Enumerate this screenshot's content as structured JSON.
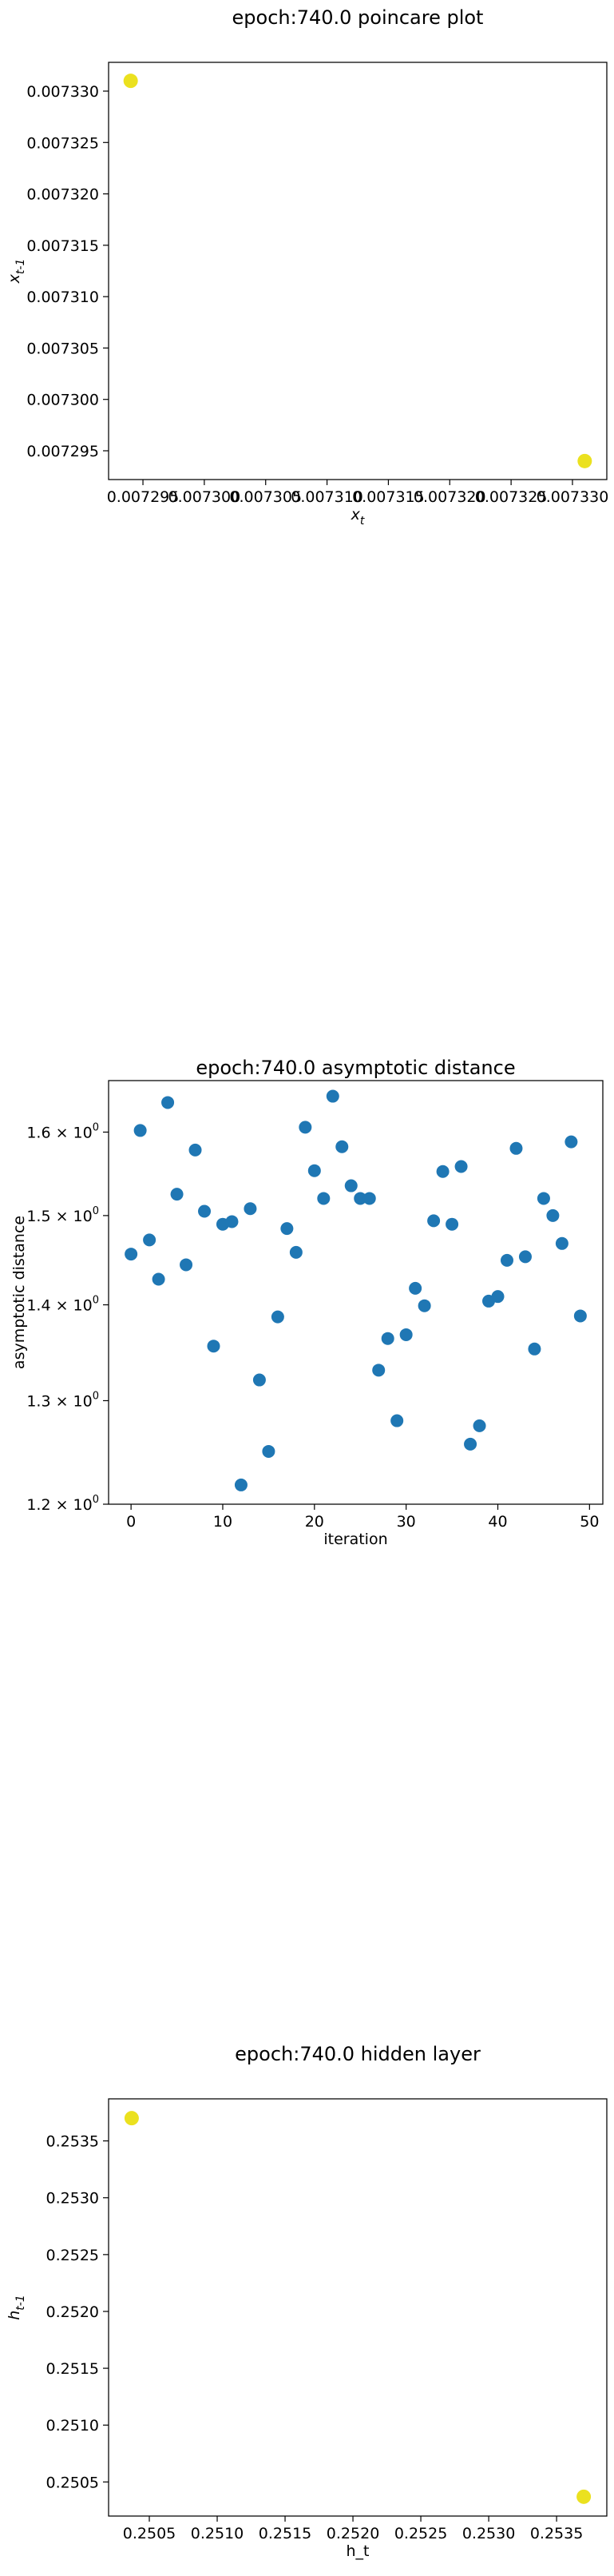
{
  "chart_data": [
    {
      "type": "scatter",
      "title": "epoch:740.0 poincare plot",
      "xlabel": "x_t",
      "ylabel": "x_{t-1}",
      "x": [
        0.007294,
        0.007331
      ],
      "y": [
        0.007331,
        0.007294
      ],
      "xlim": [
        0.0072922,
        0.0073328
      ],
      "ylim": [
        0.0072922,
        0.0073328
      ],
      "xticks": [
        "0.007295",
        "0.007300",
        "0.007305",
        "0.007310",
        "0.007315",
        "0.007320",
        "0.007325",
        "0.007330"
      ],
      "yticks": [
        "0.007295",
        "0.007300",
        "0.007305",
        "0.007310",
        "0.007315",
        "0.007320",
        "0.007325",
        "0.007330"
      ],
      "point_color": "#ebe11f",
      "grid": false
    },
    {
      "type": "scatter",
      "title": "epoch:740.0 asymptotic distance",
      "xlabel": "iteration",
      "ylabel": "asymptotic distance",
      "yscale": "log",
      "x": [
        0,
        1,
        2,
        3,
        4,
        5,
        6,
        7,
        8,
        9,
        10,
        11,
        12,
        13,
        14,
        15,
        16,
        17,
        18,
        19,
        20,
        21,
        22,
        23,
        24,
        25,
        26,
        27,
        28,
        29,
        30,
        31,
        32,
        33,
        34,
        35,
        36,
        37,
        38,
        39,
        40,
        41,
        42,
        43,
        44,
        45,
        46,
        47,
        48,
        49
      ],
      "y": [
        1.456,
        1.602,
        1.472,
        1.428,
        1.637,
        1.525,
        1.444,
        1.578,
        1.505,
        1.356,
        1.49,
        1.493,
        1.218,
        1.508,
        1.321,
        1.25,
        1.387,
        1.485,
        1.458,
        1.606,
        1.553,
        1.52,
        1.645,
        1.582,
        1.535,
        1.52,
        1.52,
        1.331,
        1.364,
        1.28,
        1.368,
        1.418,
        1.399,
        1.494,
        1.552,
        1.49,
        1.558,
        1.257,
        1.275,
        1.404,
        1.409,
        1.449,
        1.58,
        1.453,
        1.353,
        1.52,
        1.5,
        1.468,
        1.588,
        1.388
      ],
      "xlim": [
        -2.45,
        51.45
      ],
      "ylim": [
        1.2,
        1.665
      ],
      "xticks": [
        0,
        10,
        20,
        30,
        40,
        50
      ],
      "yticks": [
        1.2,
        1.3,
        1.4,
        1.5,
        1.6
      ],
      "yticklabels": [
        "1.2",
        "1.3",
        "1.4",
        "1.5",
        "1.6"
      ],
      "ytick_base": "× 10",
      "ytick_exp": "0",
      "point_color": "#1f77b4",
      "grid": false
    },
    {
      "type": "scatter",
      "title": "epoch:740.0 hidden layer",
      "xlabel": "h_t",
      "ylabel": "h_{t-1}",
      "x": [
        0.25037,
        0.2537
      ],
      "y": [
        0.2537,
        0.25037
      ],
      "xlim": [
        0.2502,
        0.25387
      ],
      "ylim": [
        0.2502,
        0.25387
      ],
      "xticks": [
        "0.2505",
        "0.2510",
        "0.2515",
        "0.2520",
        "0.2525",
        "0.2530",
        "0.2535"
      ],
      "yticks": [
        "0.2505",
        "0.2510",
        "0.2515",
        "0.2520",
        "0.2525",
        "0.2530",
        "0.2535"
      ],
      "point_color": "#ebe11f",
      "grid": false
    }
  ]
}
